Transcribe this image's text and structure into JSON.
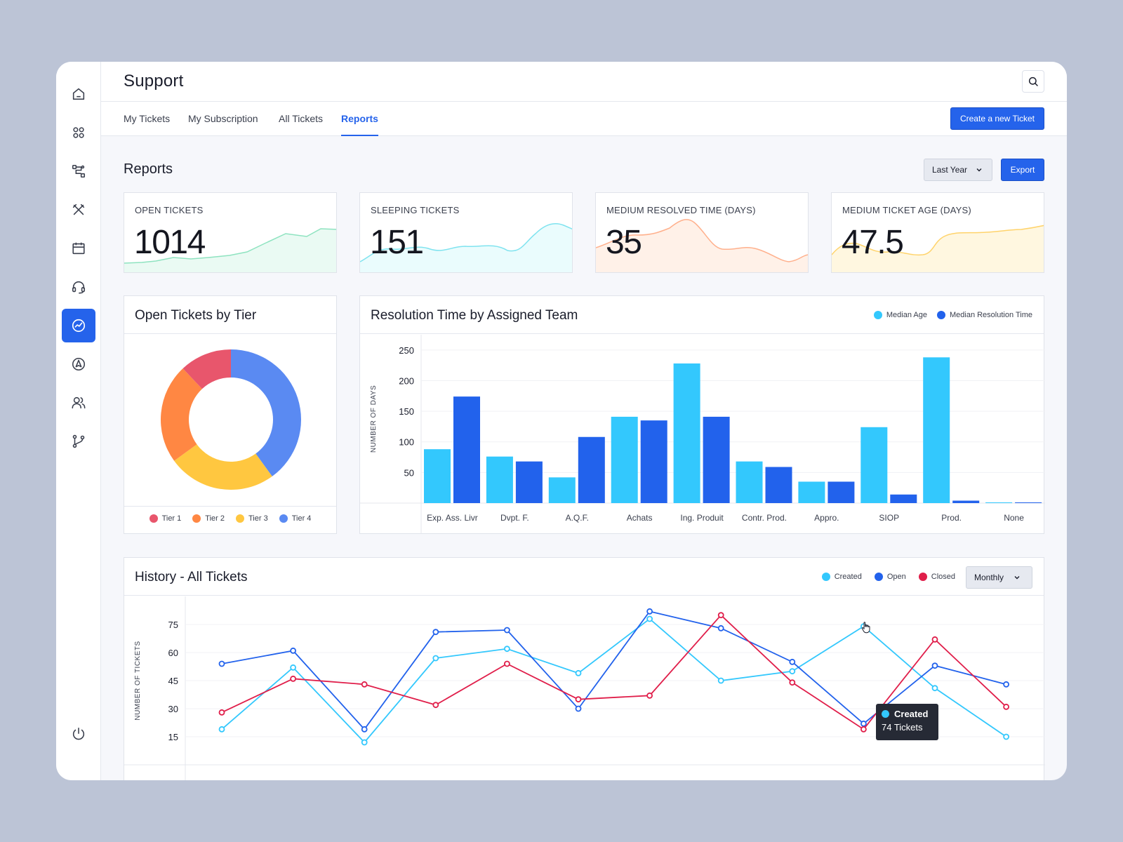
{
  "app": {
    "title": "Support"
  },
  "colors": {
    "accent": "#2563eb",
    "tier1": "#e8566c",
    "tier2": "#ff8743",
    "tier3": "#ffc740",
    "tier4": "#5a8af2",
    "light_blue": "#33c8fd",
    "dark_blue": "#2262ec",
    "red": "#e01e4a"
  },
  "sidebar": {
    "items": [
      {
        "icon": "home-icon"
      },
      {
        "icon": "apps-icon"
      },
      {
        "icon": "workflow-icon"
      },
      {
        "icon": "tools-icon"
      },
      {
        "icon": "calendar-icon"
      },
      {
        "icon": "headset-icon"
      },
      {
        "icon": "analytics-icon",
        "active": true
      },
      {
        "icon": "compass-icon"
      },
      {
        "icon": "users-icon"
      },
      {
        "icon": "git-branch-icon"
      }
    ],
    "bottom_icon": "power-icon"
  },
  "tabs": [
    {
      "label": "My Tickets"
    },
    {
      "label": "My Subscription"
    },
    {
      "label": "All Tickets"
    },
    {
      "label": "Reports",
      "active": true
    }
  ],
  "actions": {
    "create_label": "Create a new Ticket",
    "export_label": "Export",
    "period": "Last Year"
  },
  "reports_title": "Reports",
  "kpis": [
    {
      "label": "OPEN TICKETS",
      "value": "1014"
    },
    {
      "label": "SLEEPING TICKETS",
      "value": "151"
    },
    {
      "label": "MEDIUM RESOLVED TIME (DAYS)",
      "value": "35"
    },
    {
      "label": "MEDIUM TICKET AGE (DAYS)",
      "value": "47.5"
    }
  ],
  "tier_card": {
    "title": "Open Tickets by Tier",
    "chart_data": {
      "type": "pie",
      "categories": [
        "Tier 1",
        "Tier 2",
        "Tier 3",
        "Tier 4"
      ],
      "values": [
        12,
        23,
        25,
        40
      ],
      "legend": "bottom"
    }
  },
  "resolution_card": {
    "title": "Resolution Time by Assigned Team",
    "chart_data": {
      "type": "bar",
      "categories": [
        "Exp. Ass. Livr",
        "Dvpt. F.",
        "A.Q.F.",
        "Achats",
        "Ing. Produit",
        "Contr. Prod.",
        "Appro.",
        "SIOP",
        "Prod.",
        "None"
      ],
      "series": [
        {
          "name": "Median Age",
          "values": [
            88,
            76,
            42,
            141,
            228,
            68,
            35,
            124,
            238,
            1
          ]
        },
        {
          "name": "Median Resolution Time",
          "values": [
            174,
            68,
            108,
            135,
            141,
            59,
            35,
            14,
            4,
            1
          ]
        }
      ],
      "ylabel": "NUMBER OF DAYS",
      "yticks": [
        50,
        100,
        150,
        200,
        250
      ],
      "ylim": [
        0,
        275
      ],
      "legend": "top-right"
    }
  },
  "history_card": {
    "title": "History - All Tickets",
    "frequency": "Monthly",
    "chart_data": {
      "type": "line",
      "series": [
        {
          "name": "Created",
          "values": [
            19,
            52,
            12,
            57,
            62,
            49,
            78,
            45,
            50,
            74,
            41,
            15
          ]
        },
        {
          "name": "Open",
          "values": [
            54,
            61,
            19,
            71,
            72,
            30,
            82,
            73,
            55,
            22,
            53,
            43
          ]
        },
        {
          "name": "Closed",
          "values": [
            28,
            46,
            43,
            32,
            54,
            35,
            37,
            80,
            44,
            19,
            67,
            31
          ]
        }
      ],
      "ylabel": "NUMBER OF TICKETS",
      "yticks": [
        15,
        30,
        45,
        60,
        75
      ],
      "ylim": [
        0,
        90
      ],
      "legend": "top-right",
      "grid": true
    },
    "tooltip": {
      "title": "Created",
      "value": "74 Tickets"
    }
  }
}
